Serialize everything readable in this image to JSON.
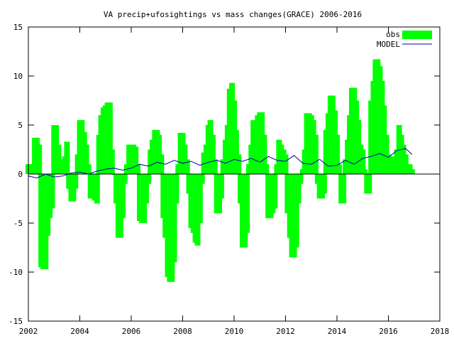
{
  "chart_data": {
    "type": "bar",
    "title": "VA precip+ufosightings vs mass changes(GRACE) 2006-2016",
    "xlabel": "",
    "ylabel": "",
    "xlim": [
      2002,
      2018
    ],
    "ylim": [
      -15,
      15
    ],
    "x_ticks": [
      2002,
      2004,
      2006,
      2008,
      2010,
      2012,
      2014,
      2016,
      2018
    ],
    "y_ticks": [
      -15,
      -10,
      -5,
      0,
      5,
      10,
      15
    ],
    "grid": false,
    "legend_position": "top-right",
    "colors": {
      "obs": "#00ff00",
      "model": "#0000aa",
      "axis": "#000000"
    },
    "series": [
      {
        "name": "obs",
        "style": "impulse",
        "x": [
          2002.0,
          2002.08,
          2002.17,
          2002.25,
          2002.33,
          2002.42,
          2002.5,
          2002.58,
          2002.67,
          2002.75,
          2002.83,
          2002.92,
          2003.0,
          2003.08,
          2003.17,
          2003.25,
          2003.33,
          2003.42,
          2003.5,
          2003.58,
          2003.67,
          2003.75,
          2003.83,
          2003.92,
          2004.0,
          2004.08,
          2004.17,
          2004.25,
          2004.33,
          2004.42,
          2004.5,
          2004.58,
          2004.67,
          2004.75,
          2004.83,
          2004.92,
          2005.0,
          2005.08,
          2005.17,
          2005.25,
          2005.33,
          2005.42,
          2005.5,
          2005.58,
          2005.67,
          2005.75,
          2005.83,
          2005.92,
          2006.0,
          2006.08,
          2006.17,
          2006.25,
          2006.33,
          2006.42,
          2006.5,
          2006.58,
          2006.67,
          2006.75,
          2006.83,
          2006.92,
          2007.0,
          2007.08,
          2007.17,
          2007.25,
          2007.33,
          2007.42,
          2007.5,
          2007.58,
          2007.67,
          2007.75,
          2007.83,
          2007.92,
          2008.0,
          2008.08,
          2008.17,
          2008.25,
          2008.33,
          2008.42,
          2008.5,
          2008.58,
          2008.67,
          2008.75,
          2008.83,
          2008.92,
          2009.0,
          2009.08,
          2009.17,
          2009.25,
          2009.33,
          2009.42,
          2009.5,
          2009.58,
          2009.67,
          2009.75,
          2009.83,
          2009.92,
          2010.0,
          2010.08,
          2010.17,
          2010.25,
          2010.33,
          2010.42,
          2010.5,
          2010.58,
          2010.67,
          2010.75,
          2010.83,
          2010.92,
          2011.0,
          2011.08,
          2011.17,
          2011.25,
          2011.33,
          2011.42,
          2011.5,
          2011.58,
          2011.67,
          2011.75,
          2011.83,
          2011.92,
          2012.0,
          2012.08,
          2012.17,
          2012.25,
          2012.33,
          2012.42,
          2012.5,
          2012.58,
          2012.67,
          2012.75,
          2012.83,
          2012.92,
          2013.0,
          2013.08,
          2013.17,
          2013.25,
          2013.33,
          2013.42,
          2013.5,
          2013.58,
          2013.67,
          2013.75,
          2013.83,
          2013.92,
          2014.0,
          2014.08,
          2014.17,
          2014.25,
          2014.33,
          2014.42,
          2014.5,
          2014.58,
          2014.67,
          2014.75,
          2014.83,
          2014.92,
          2015.0,
          2015.08,
          2015.17,
          2015.25,
          2015.33,
          2015.42,
          2015.5,
          2015.58,
          2015.67,
          2015.75,
          2015.83,
          2015.92,
          2016.0,
          2016.08,
          2016.17,
          2016.25,
          2016.33,
          2016.42,
          2016.5,
          2016.58,
          2016.67,
          2016.75,
          2016.83,
          2016.92
        ],
        "values": [
          1.0,
          1.0,
          0.5,
          3.7,
          3.7,
          3.0,
          -9.5,
          -9.7,
          -9.7,
          -6.3,
          -4.5,
          -3.5,
          5.0,
          5.0,
          3.0,
          1.5,
          0.8,
          1.8,
          3.3,
          -1.5,
          -2.8,
          -2.8,
          -1.5,
          2.0,
          5.5,
          5.5,
          4.3,
          3.0,
          1.0,
          -2.5,
          -2.0,
          -2.7,
          -3.0,
          4.0,
          6.0,
          6.8,
          7.0,
          7.3,
          7.3,
          2.5,
          0.0,
          -3.0,
          -6.5,
          -6.5,
          -4.5,
          -1.0,
          1.0,
          3.0,
          3.0,
          3.0,
          2.8,
          1.0,
          -4.8,
          -5.0,
          -5.0,
          -3.0,
          -1.0,
          2.5,
          3.5,
          4.5,
          4.5,
          4.0,
          2.0,
          -4.5,
          -6.5,
          -10.5,
          -11.0,
          -11.0,
          -9.0,
          -3.0,
          1.0,
          4.2,
          4.2,
          3.0,
          1.5,
          -2.0,
          -5.5,
          -6.0,
          -7.0,
          -7.3,
          -5.0,
          -1.0,
          2.2,
          3.0,
          5.0,
          5.5,
          4.0,
          1.5,
          -4.0,
          -4.0,
          -2.5,
          1.5,
          3.5,
          5.0,
          8.7,
          9.3,
          7.5,
          4.5,
          2.0,
          -3.0,
          -7.5,
          -7.5,
          -6.0,
          1.0,
          3.0,
          5.5,
          4.5,
          6.0,
          6.3,
          6.3,
          4.0,
          1.0,
          -4.5,
          -4.5,
          -4.0,
          -3.5,
          1.0,
          3.5,
          3.0,
          2.5,
          2.0,
          -4.0,
          -6.5,
          -8.5,
          -8.5,
          -7.5,
          -3.0,
          -1.0,
          0.5,
          2.5,
          6.2,
          6.2,
          6.0,
          5.5,
          4.0,
          -1.0,
          -2.5,
          -2.5,
          -2.0,
          4.5,
          6.2,
          8.0,
          8.0,
          6.5,
          4.0,
          1.0,
          -3.0,
          -3.0,
          1.5,
          3.5,
          6.0,
          8.8,
          8.8,
          7.5,
          5.5,
          3.0,
          2.5,
          0.5,
          -2.0,
          -2.0,
          7.5,
          9.5,
          11.7,
          11.7,
          11.0,
          9.5,
          7.0,
          4.0,
          2.0,
          1.8,
          1.8,
          1.0,
          2.5,
          5.0,
          4.0,
          3.0,
          2.0,
          1.0,
          1.0,
          0.5
        ]
      },
      {
        "name": "MODEL",
        "style": "line",
        "x": [
          2002.0,
          2002.33,
          2002.67,
          2003.0,
          2003.33,
          2003.67,
          2004.0,
          2004.33,
          2004.67,
          2005.0,
          2005.33,
          2005.67,
          2006.0,
          2006.33,
          2006.67,
          2007.0,
          2007.33,
          2007.67,
          2008.0,
          2008.33,
          2008.67,
          2009.0,
          2009.33,
          2009.67,
          2010.0,
          2010.33,
          2010.67,
          2011.0,
          2011.33,
          2011.67,
          2012.0,
          2012.33,
          2012.67,
          2013.0,
          2013.33,
          2013.67,
          2014.0,
          2014.33,
          2014.67,
          2015.0,
          2015.33,
          2015.67,
          2016.0,
          2016.33,
          2016.67,
          2016.92
        ],
        "values": [
          -0.2,
          -0.4,
          0.0,
          -0.3,
          -0.2,
          0.1,
          0.2,
          0.0,
          0.3,
          0.5,
          0.6,
          0.4,
          0.6,
          1.0,
          0.8,
          1.2,
          1.0,
          1.4,
          1.1,
          1.3,
          0.9,
          1.2,
          1.4,
          1.1,
          1.5,
          1.3,
          1.6,
          1.2,
          1.8,
          1.4,
          1.3,
          1.9,
          1.1,
          1.0,
          1.5,
          0.8,
          0.9,
          1.4,
          1.0,
          1.6,
          1.8,
          2.1,
          1.7,
          2.4,
          2.6,
          2.0
        ]
      }
    ]
  }
}
